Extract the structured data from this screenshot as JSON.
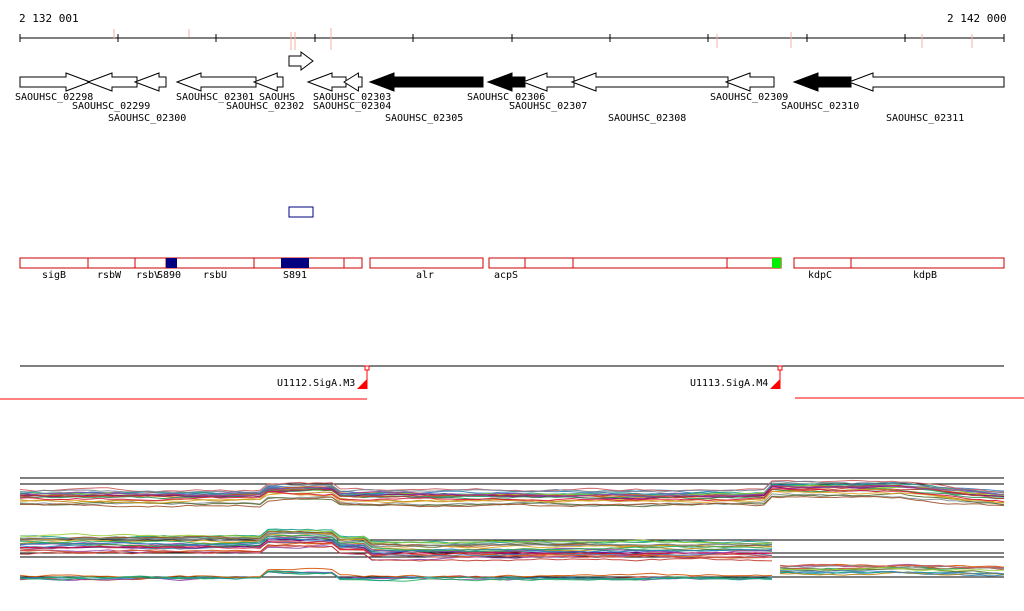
{
  "ruler": {
    "start_label": "2 132 001",
    "end_label": "2 142 000",
    "start": 2132001,
    "end": 2142000
  },
  "colors": {
    "gene_fill_dark": "#000000",
    "annotation_border": "#cc0000",
    "srna_fill": "#000080",
    "highlight_green": "#00ee00",
    "tss_marker": "#ff0000",
    "tick_pink": "#f0b0a0"
  },
  "genes": [
    {
      "id": "SAOUHSC_02298",
      "strand": "+",
      "fill": "white"
    },
    {
      "id": "SAOUHSC_02299",
      "strand": "-",
      "fill": "white"
    },
    {
      "id": "SAOUHSC_02300",
      "strand": "-",
      "fill": "white"
    },
    {
      "id": "SAOUHSC_02301",
      "strand": "-",
      "fill": "white"
    },
    {
      "id": "SAOUHSC_02302",
      "strand": "-",
      "fill": "white"
    },
    {
      "id": "SAOUHSC_02303",
      "strand": "-",
      "fill": "white"
    },
    {
      "id": "SAOUHSC_02304",
      "strand": "-",
      "fill": "white"
    },
    {
      "id": "SAOUHSC_02305",
      "strand": "-",
      "fill": "black"
    },
    {
      "id": "SAOUHSC_02306",
      "strand": "-",
      "fill": "black"
    },
    {
      "id": "SAOUHSC_02307",
      "strand": "-",
      "fill": "white"
    },
    {
      "id": "SAOUHSC_02308",
      "strand": "-",
      "fill": "white"
    },
    {
      "id": "SAOUHSC_02309",
      "strand": "-",
      "fill": "white"
    },
    {
      "id": "SAOUHSC_02310",
      "strand": "-",
      "fill": "black"
    },
    {
      "id": "SAOUHSC_02311",
      "strand": "-",
      "fill": "white"
    }
  ],
  "overlap_labels": [
    "SAOUHS",
    "SAOUHSC_02303"
  ],
  "annotations": [
    {
      "name": "sigB"
    },
    {
      "name": "rsbW"
    },
    {
      "name": "rsbV"
    },
    {
      "name": "S890"
    },
    {
      "name": "rsbU"
    },
    {
      "name": "S891"
    },
    {
      "name": "alr"
    },
    {
      "name": "acpS"
    },
    {
      "name": "kdpC"
    },
    {
      "name": "kdpB"
    }
  ],
  "promoters": [
    {
      "name": "U1112.SigA.M3"
    },
    {
      "name": "U1113.SigA.M4"
    }
  ]
}
